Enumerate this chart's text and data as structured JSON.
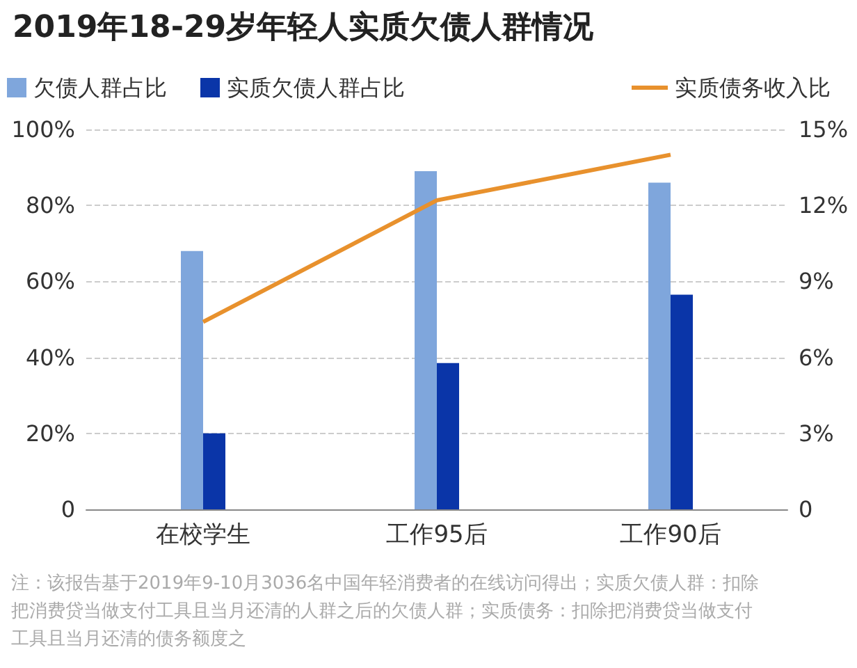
{
  "chart_data": {
    "type": "bar",
    "title": "2019年18-29岁年轻人实质欠债人群情况",
    "categories": [
      "在校学生",
      "工作95后",
      "工作90后"
    ],
    "series": [
      {
        "name": "欠债人群占比",
        "color": "#7fa6dc",
        "values": [
          68,
          89,
          86
        ]
      },
      {
        "name": "实质欠债人群占比",
        "color": "#0a35a8",
        "values": [
          20,
          38.5,
          56.5
        ]
      },
      {
        "name": "实质债务收入比",
        "type": "line",
        "axis": "y2",
        "color": "#e8912d",
        "values": [
          7.4,
          12.2,
          14
        ]
      }
    ],
    "ylim": [
      0,
      100
    ],
    "yticks": [
      {
        "value": 0,
        "label": "0"
      },
      {
        "value": 20,
        "label": "20%"
      },
      {
        "value": 40,
        "label": "40%"
      },
      {
        "value": 60,
        "label": "60%"
      },
      {
        "value": 80,
        "label": "80%"
      },
      {
        "value": 100,
        "label": "100%"
      }
    ],
    "y2lim": [
      0,
      15
    ],
    "y2ticks": [
      {
        "value": 0,
        "label": "0"
      },
      {
        "value": 3,
        "label": "3%"
      },
      {
        "value": 6,
        "label": "6%"
      },
      {
        "value": 9,
        "label": "9%"
      },
      {
        "value": 12,
        "label": "12%"
      },
      {
        "value": 15,
        "label": "15%"
      }
    ],
    "grid": "y",
    "legend": "top",
    "marker": "none",
    "annotations": [
      "注：该报告基于2019年9-10月3036名中国年轻消费者的在线访问得出；实质欠债人群：扣除把消费贷当做支付工具且当月还清的人群之后的欠债人群；实质债务：扣除把消费贷当做支付工具且当月还清的债务额度之"
    ]
  }
}
